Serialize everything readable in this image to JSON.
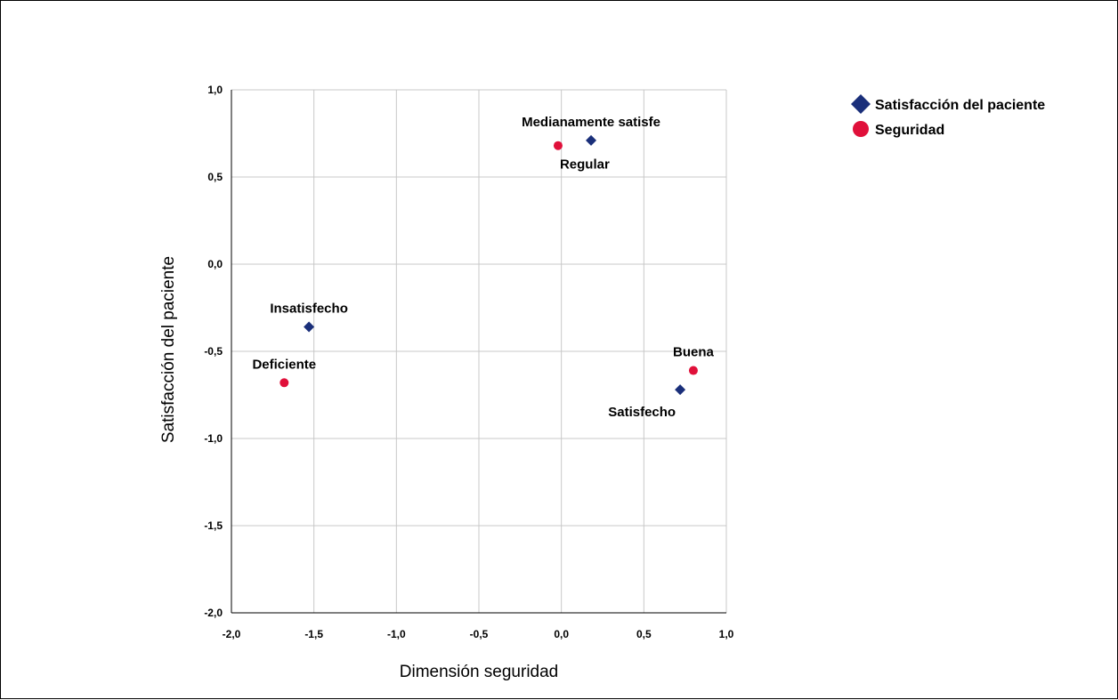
{
  "chart_data": {
    "type": "scatter",
    "title": "",
    "xlabel": "Dimensión seguridad",
    "ylabel": "Satisfacción del paciente",
    "xlim": [
      -2.0,
      1.0
    ],
    "ylim": [
      -2.0,
      1.0
    ],
    "x_ticks": [
      "-2,0",
      "-1,5",
      "-1,0",
      "-0,5",
      "0,0",
      "0,5",
      "1,0"
    ],
    "y_ticks": [
      "-2,0",
      "-1,5",
      "-1,0",
      "-0,5",
      "0,0",
      "0,5",
      "1,0"
    ],
    "x_tick_values": [
      -2.0,
      -1.5,
      -1.0,
      -0.5,
      0.0,
      0.5,
      1.0
    ],
    "y_tick_values": [
      -2.0,
      -1.5,
      -1.0,
      -0.5,
      0.0,
      0.5,
      1.0
    ],
    "grid": true,
    "legend_position": "top-right, outside plot",
    "series": [
      {
        "name": "Satisfacción del paciente",
        "marker": "diamond",
        "color": "#1a2f7a",
        "points": [
          {
            "label": "Medianamente satisfe",
            "x": 0.18,
            "y": 0.71,
            "label_pos": "above"
          },
          {
            "label": "Insatisfecho",
            "x": -1.53,
            "y": -0.36,
            "label_pos": "above"
          },
          {
            "label": "Satisfecho",
            "x": 0.72,
            "y": -0.72,
            "label_pos": "below-left"
          }
        ]
      },
      {
        "name": "Seguridad",
        "marker": "circle",
        "color": "#e0103a",
        "points": [
          {
            "label": "Regular",
            "x": -0.02,
            "y": 0.68,
            "label_pos": "below-right"
          },
          {
            "label": "Deficiente",
            "x": -1.68,
            "y": -0.68,
            "label_pos": "above"
          },
          {
            "label": "Buena",
            "x": 0.8,
            "y": -0.61,
            "label_pos": "above"
          }
        ]
      }
    ]
  }
}
